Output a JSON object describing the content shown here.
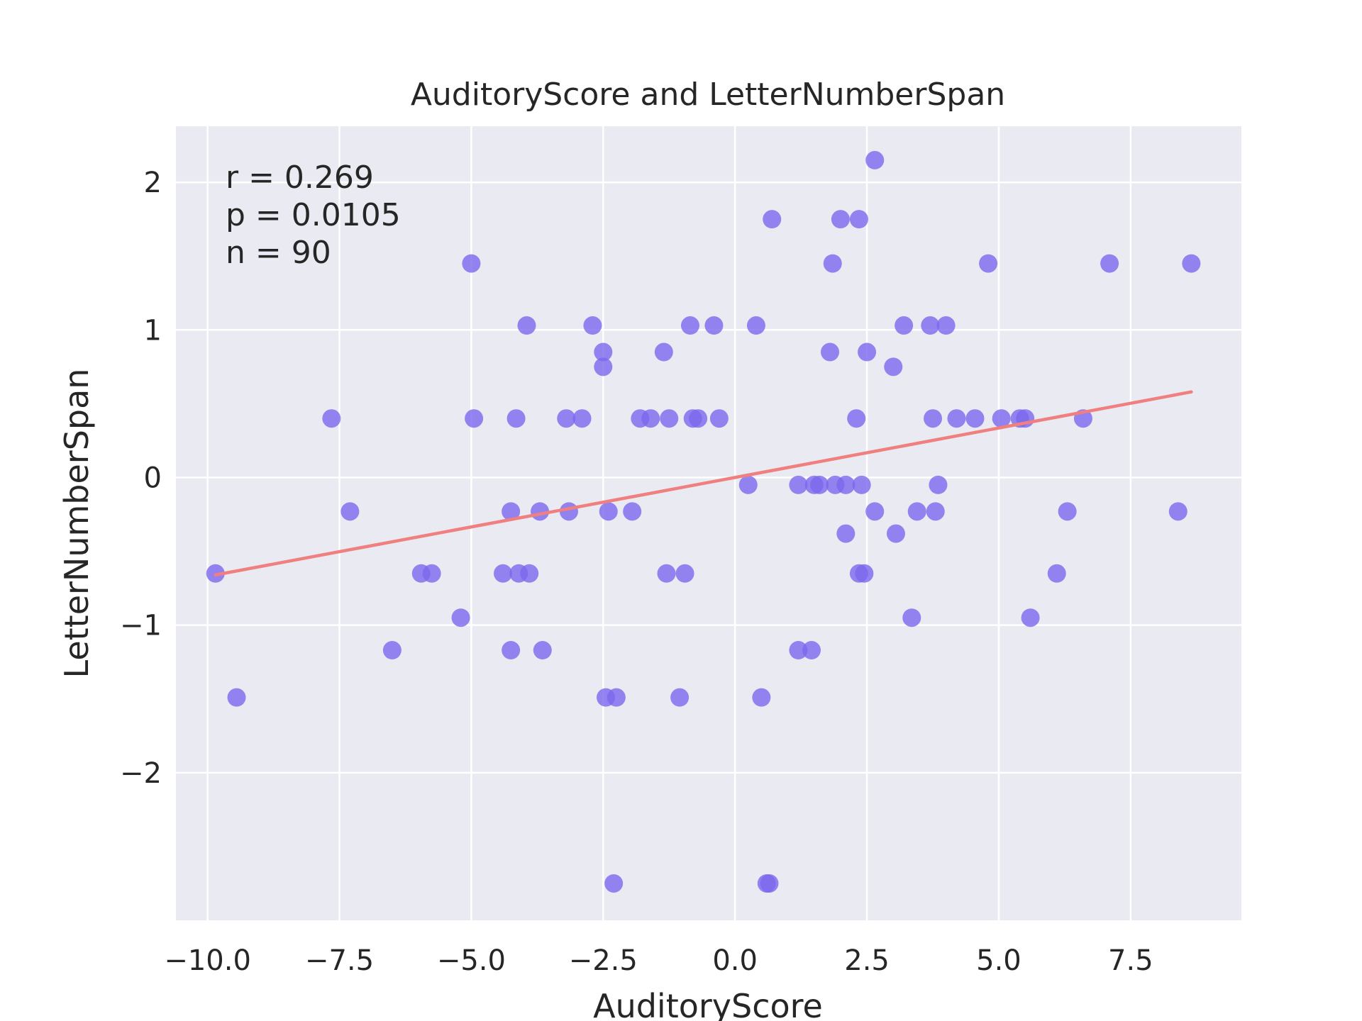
{
  "chart_data": {
    "type": "scatter",
    "title": "AuditoryScore and LetterNumberSpan",
    "xlabel": "AuditoryScore",
    "ylabel": "LetterNumberSpan",
    "xlim": [
      -10.6,
      9.6
    ],
    "ylim": [
      -3.0,
      2.38
    ],
    "xticks": [
      -10.0,
      -7.5,
      -5.0,
      -2.5,
      0.0,
      2.5,
      5.0,
      7.5
    ],
    "xtick_labels": [
      "−10.0",
      "−7.5",
      "−5.0",
      "−2.5",
      "0.0",
      "2.5",
      "5.0",
      "7.5"
    ],
    "yticks": [
      -2,
      -1,
      0,
      1,
      2
    ],
    "ytick_labels": [
      "−2",
      "−1",
      "0",
      "1",
      "2"
    ],
    "grid": true,
    "background": "#eaeaf2",
    "point_color": "#7b68ee",
    "line_color": "#f08080",
    "annotation": [
      "r = 0.269",
      "p = 0.0105",
      "n = 90"
    ],
    "regression": {
      "x": [
        -9.85,
        8.65
      ],
      "y": [
        -0.66,
        0.58
      ]
    },
    "points": [
      [
        -9.85,
        -0.65
      ],
      [
        -9.45,
        -1.49
      ],
      [
        -7.65,
        0.4
      ],
      [
        -7.3,
        -0.23
      ],
      [
        -6.5,
        -1.17
      ],
      [
        -5.95,
        -0.65
      ],
      [
        -5.75,
        -0.65
      ],
      [
        -5.2,
        -0.95
      ],
      [
        -5.0,
        1.45
      ],
      [
        -4.95,
        0.4
      ],
      [
        -4.4,
        -0.65
      ],
      [
        -4.25,
        -0.23
      ],
      [
        -4.25,
        -1.17
      ],
      [
        -4.15,
        0.4
      ],
      [
        -4.1,
        -0.65
      ],
      [
        -3.9,
        -0.65
      ],
      [
        -3.95,
        1.03
      ],
      [
        -3.7,
        -0.23
      ],
      [
        -3.65,
        -1.17
      ],
      [
        -3.2,
        0.4
      ],
      [
        -3.15,
        -0.23
      ],
      [
        -2.9,
        0.4
      ],
      [
        -2.7,
        1.03
      ],
      [
        -2.5,
        0.85
      ],
      [
        -2.5,
        0.75
      ],
      [
        -2.4,
        -0.23
      ],
      [
        -2.45,
        -1.49
      ],
      [
        -2.25,
        -1.49
      ],
      [
        -2.3,
        -2.75
      ],
      [
        -1.95,
        -0.23
      ],
      [
        -1.8,
        0.4
      ],
      [
        -1.6,
        0.4
      ],
      [
        -1.35,
        0.85
      ],
      [
        -1.3,
        -0.65
      ],
      [
        -1.25,
        0.4
      ],
      [
        -1.05,
        -1.49
      ],
      [
        -0.95,
        -0.65
      ],
      [
        -0.85,
        1.03
      ],
      [
        -0.8,
        0.4
      ],
      [
        -0.7,
        0.4
      ],
      [
        -0.4,
        1.03
      ],
      [
        -0.3,
        0.4
      ],
      [
        0.25,
        -0.05
      ],
      [
        0.4,
        1.03
      ],
      [
        0.5,
        -1.49
      ],
      [
        0.6,
        -2.75
      ],
      [
        0.65,
        -2.75
      ],
      [
        0.7,
        1.75
      ],
      [
        1.2,
        -0.05
      ],
      [
        1.2,
        -1.17
      ],
      [
        1.45,
        -1.17
      ],
      [
        1.5,
        -0.05
      ],
      [
        1.6,
        -0.05
      ],
      [
        1.8,
        0.85
      ],
      [
        1.85,
        1.45
      ],
      [
        1.9,
        -0.05
      ],
      [
        2.0,
        1.75
      ],
      [
        2.1,
        -0.38
      ],
      [
        2.1,
        -0.05
      ],
      [
        2.3,
        0.4
      ],
      [
        2.35,
        1.75
      ],
      [
        2.35,
        -0.65
      ],
      [
        2.4,
        -0.05
      ],
      [
        2.45,
        -0.65
      ],
      [
        2.5,
        0.85
      ],
      [
        2.65,
        2.15
      ],
      [
        2.65,
        -0.23
      ],
      [
        3.0,
        0.75
      ],
      [
        3.05,
        -0.38
      ],
      [
        3.2,
        1.03
      ],
      [
        3.35,
        -0.95
      ],
      [
        3.45,
        -0.23
      ],
      [
        3.7,
        1.03
      ],
      [
        3.75,
        0.4
      ],
      [
        3.8,
        -0.23
      ],
      [
        3.85,
        -0.05
      ],
      [
        4.0,
        1.03
      ],
      [
        4.2,
        0.4
      ],
      [
        4.55,
        0.4
      ],
      [
        4.8,
        1.45
      ],
      [
        5.05,
        0.4
      ],
      [
        5.4,
        0.4
      ],
      [
        5.5,
        0.4
      ],
      [
        5.6,
        -0.95
      ],
      [
        6.1,
        -0.65
      ],
      [
        6.3,
        -0.23
      ],
      [
        6.6,
        0.4
      ],
      [
        7.1,
        1.45
      ],
      [
        8.4,
        -0.23
      ],
      [
        8.65,
        1.45
      ]
    ]
  }
}
